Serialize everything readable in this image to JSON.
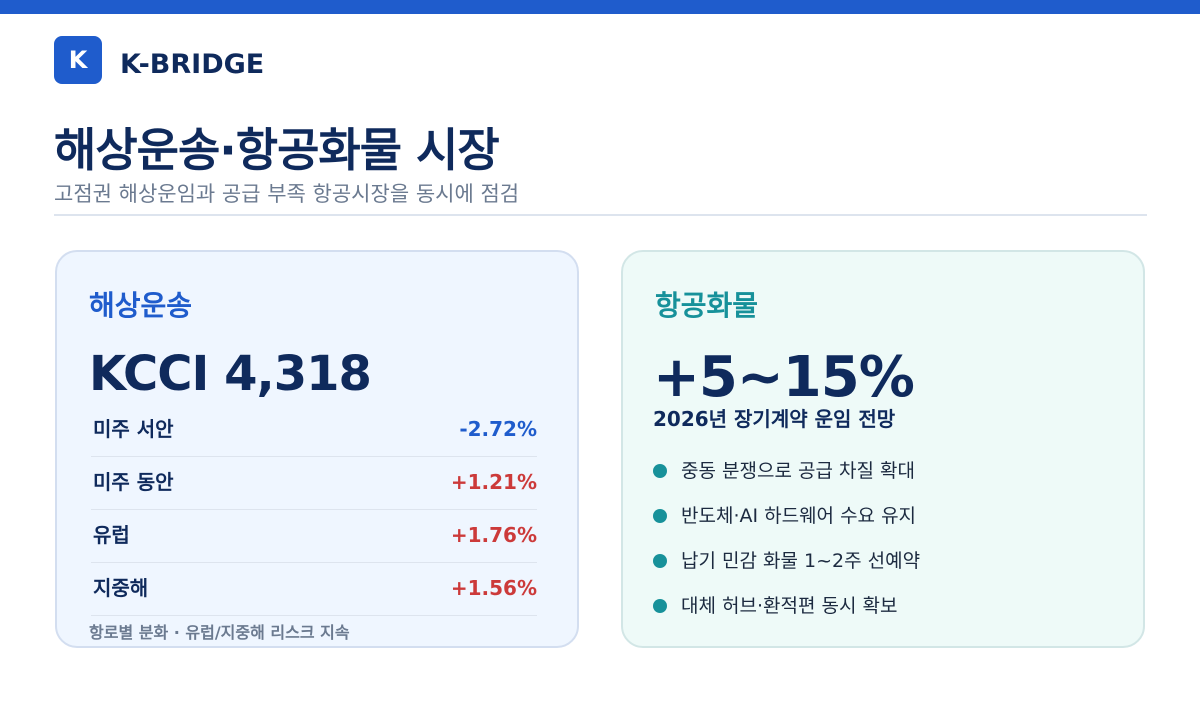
{
  "colors": {
    "accent_blue": "#1f5ccc",
    "accent_teal": "#17919a",
    "navy": "#0f2a5c",
    "negative": "#1f5ccc",
    "positive": "#cc3a3a"
  },
  "header": {
    "logo_letter": "K",
    "brand": "K-BRIDGE",
    "title": "해상운송·항공화물 시장",
    "subtitle": "고점권 해상운임과 공급 부족 항공시장을 동시에 점검"
  },
  "sea": {
    "title": "해상운송",
    "index": "KCCI 4,318",
    "rows": [
      {
        "label": "미주 서안",
        "value": "-2.72%",
        "trend": "down"
      },
      {
        "label": "미주 동안",
        "value": "+1.21%",
        "trend": "up"
      },
      {
        "label": "유럽",
        "value": "+1.76%",
        "trend": "up"
      },
      {
        "label": "지중해",
        "value": "+1.56%",
        "trend": "up"
      }
    ],
    "footnote": "항로별 분화 · 유럽/지중해 리스크 지속"
  },
  "air": {
    "title": "항공화물",
    "headline": "+5~15%",
    "headline_sub": "2026년 장기계약 운임 전망",
    "bullets": [
      "중동 분쟁으로 공급 차질 확대",
      "반도체·AI 하드웨어 수요 유지",
      "납기 민감 화물 1~2주 선예약",
      "대체 허브·환적편 동시 확보"
    ]
  }
}
